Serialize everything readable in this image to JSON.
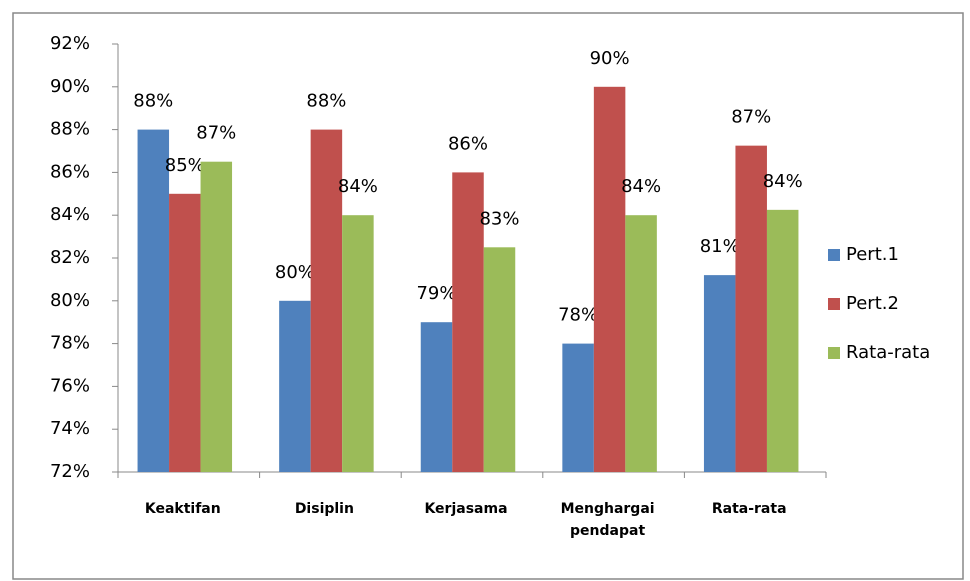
{
  "chart_data": {
    "type": "bar",
    "categories": [
      "Keaktifan",
      "Disiplin",
      "Kerjasama",
      "Menghargai pendapat",
      "Rata-rata"
    ],
    "series": [
      {
        "name": "Pert.1",
        "color": "#4f81bd",
        "values": [
          88,
          80,
          79,
          78,
          81.2
        ],
        "value_labels": [
          "88%",
          "80%",
          "79%",
          "78%",
          "81%"
        ]
      },
      {
        "name": "Pert.2",
        "color": "#c0504d",
        "values": [
          85,
          88,
          86,
          90,
          87.25
        ],
        "value_labels": [
          "85%",
          "88%",
          "86%",
          "90%",
          "87%"
        ]
      },
      {
        "name": "Rata-rata",
        "color": "#9bbb59",
        "values": [
          86.5,
          84,
          82.5,
          84,
          84.25
        ],
        "value_labels": [
          "87%",
          "84%",
          "83%",
          "84%",
          "84%"
        ]
      }
    ],
    "ylim": [
      72,
      92
    ],
    "yticks": [
      {
        "value": 72,
        "label": "72%"
      },
      {
        "value": 74,
        "label": "74%"
      },
      {
        "value": 76,
        "label": "76%"
      },
      {
        "value": 78,
        "label": "78%"
      },
      {
        "value": 80,
        "label": "80%"
      },
      {
        "value": 82,
        "label": "82%"
      },
      {
        "value": 84,
        "label": "84%"
      },
      {
        "value": 86,
        "label": "86%"
      },
      {
        "value": 88,
        "label": "88%"
      },
      {
        "value": 90,
        "label": "90%"
      },
      {
        "value": 92,
        "label": "92%"
      }
    ],
    "grid": false,
    "legend": "right"
  }
}
